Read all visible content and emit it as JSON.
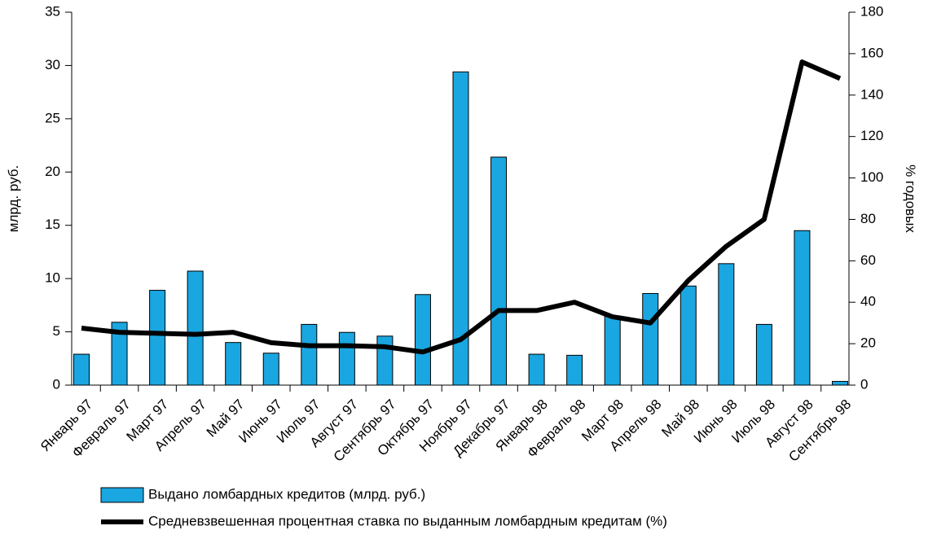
{
  "chart_data": {
    "type": "bar",
    "categories": [
      "Январь 97",
      "Февраль 97",
      "Март 97",
      "Апрель 97",
      "Май 97",
      "Июнь 97",
      "Июль 97",
      "Август 97",
      "Сентябрь 97",
      "Октябрь 97",
      "Ноябрь 97",
      "Декабрь 97",
      "Январь 98",
      "Февраль 98",
      "Март 98",
      "Апрель 98",
      "Май 98",
      "Июнь 98",
      "Июль 98",
      "Август 98",
      "Сентябрь 98"
    ],
    "series": [
      {
        "name": "Выдано ломбардных кредитов (млрд. руб.)",
        "type": "bar",
        "color": "#1aa6e0",
        "values": [
          2.9,
          5.9,
          8.9,
          10.7,
          4.0,
          3.0,
          5.7,
          4.95,
          4.6,
          8.5,
          29.4,
          21.4,
          2.9,
          2.8,
          6.5,
          8.6,
          9.3,
          11.4,
          5.7,
          14.5,
          0.35
        ]
      },
      {
        "name": "Средневзвешенная процентная ставка по выданным ломбардным кредитам (%)",
        "type": "line",
        "color": "#000000",
        "axis": "y2",
        "values": [
          27.5,
          25.5,
          25,
          24.5,
          25.5,
          20.5,
          19,
          19,
          18.5,
          16,
          22,
          36,
          36,
          40,
          33,
          30,
          50.5,
          67,
          80,
          156,
          148
        ]
      }
    ],
    "ylabel": "млрд. руб.",
    "y2label": "% годовых",
    "ylim": [
      0,
      35
    ],
    "yticks": [
      0,
      5,
      10,
      15,
      20,
      25,
      30,
      35
    ],
    "y2lim": [
      0,
      180
    ],
    "y2ticks": [
      0,
      20,
      40,
      60,
      80,
      100,
      120,
      140,
      160,
      180
    ]
  }
}
